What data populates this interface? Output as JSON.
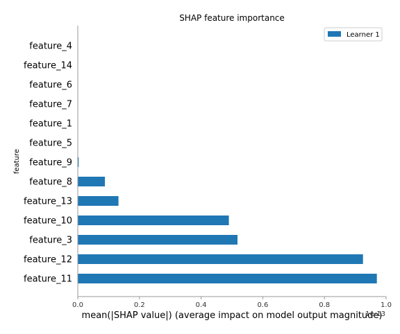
{
  "chart_data": {
    "type": "bar",
    "orientation": "horizontal",
    "title": "SHAP feature importance",
    "xlabel": "mean(|SHAP value|) (average impact on model output magnitude)",
    "ylabel": "feature",
    "x_scale_label": "1e-13",
    "xlim": [
      0,
      1.0
    ],
    "xticks": [
      "0.0",
      "0.2",
      "0.4",
      "0.6",
      "0.8",
      "1.0"
    ],
    "legend": {
      "position": "top-right",
      "entries": [
        "Learner 1"
      ]
    },
    "categories": [
      "feature_4",
      "feature_14",
      "feature_6",
      "feature_7",
      "feature_1",
      "feature_5",
      "feature_9",
      "feature_8",
      "feature_13",
      "feature_10",
      "feature_3",
      "feature_12",
      "feature_11"
    ],
    "series": [
      {
        "name": "Learner 1",
        "color": "#1f77b4",
        "values": [
          0.0,
          0.0,
          0.0,
          0.0,
          0.0,
          0.0,
          0.003,
          0.088,
          0.132,
          0.49,
          0.518,
          0.925,
          0.97
        ]
      }
    ],
    "grid": false
  }
}
